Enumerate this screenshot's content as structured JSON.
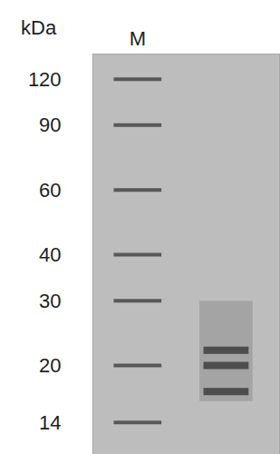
{
  "chart_data": {
    "type": "gel",
    "y_label": "kDa",
    "categories": [
      "M",
      null
    ],
    "log": "y",
    "ylim": [
      11.5,
      140
    ],
    "yticks": [
      120,
      90,
      60,
      40,
      30,
      20,
      14
    ],
    "lanes": [
      {
        "bands": [
          120,
          90,
          60,
          40,
          30,
          20,
          14
        ]
      },
      {
        "bands": [
          22,
          20,
          17
        ],
        "smear": [
          16,
          30
        ]
      }
    ]
  }
}
